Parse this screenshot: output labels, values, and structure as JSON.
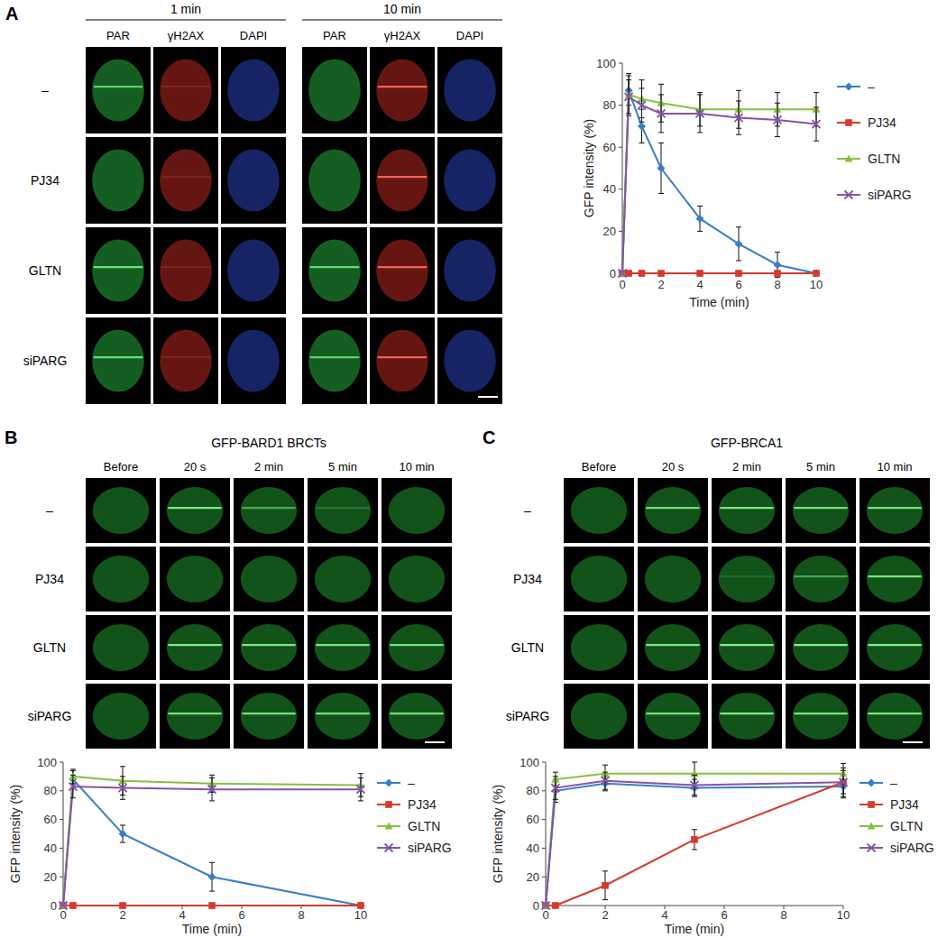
{
  "figure": {
    "panels": [
      {
        "label": "A",
        "times": [
          "1 min",
          "10 min"
        ],
        "channels": [
          "PAR",
          "γH2AX",
          "DAPI"
        ],
        "rows": [
          "–",
          "PJ34",
          "GLTN",
          "siPARG"
        ]
      },
      {
        "label": "B",
        "title": "GFP-BARD1 BRCTs",
        "columns": [
          "Before",
          "20 s",
          "2 min",
          "5 min",
          "10 min"
        ],
        "rows": [
          "–",
          "PJ34",
          "GLTN",
          "siPARG"
        ]
      },
      {
        "label": "C",
        "title": "GFP-BRCA1",
        "columns": [
          "Before",
          "20 s",
          "2 min",
          "5 min",
          "10 min"
        ],
        "rows": [
          "–",
          "PJ34",
          "GLTN",
          "siPARG"
        ]
      }
    ]
  },
  "chart_data": [
    {
      "type": "line",
      "x_label": "Time (min)",
      "y_label": "GFP intensity (%)",
      "x": [
        0,
        0.33,
        1,
        2,
        4,
        6,
        8,
        10
      ],
      "xlim": [
        0,
        10
      ],
      "xticks": [
        0,
        2,
        4,
        6,
        8,
        10
      ],
      "ylim": [
        0,
        100
      ],
      "yticks": [
        0,
        20,
        40,
        60,
        80,
        100
      ],
      "legend": "right",
      "series": [
        {
          "name": "–",
          "color": "#3b7dc4",
          "marker": "diamond",
          "values": [
            0,
            87,
            70,
            50,
            26,
            14,
            4,
            0
          ],
          "errors": [
            null,
            7,
            8,
            12,
            6,
            8,
            6,
            null
          ]
        },
        {
          "name": "PJ34",
          "color": "#d63a2f",
          "marker": "square",
          "values": [
            0,
            0,
            0,
            0,
            0,
            0,
            0,
            0
          ]
        },
        {
          "name": "GLTN",
          "color": "#86c040",
          "marker": "triangle",
          "values": [
            0,
            85,
            83,
            81,
            78,
            78,
            78,
            78
          ],
          "errors": [
            null,
            10,
            9,
            9,
            8,
            9,
            8,
            8
          ]
        },
        {
          "name": "siPARG",
          "color": "#8454a8",
          "marker": "x",
          "values": [
            0,
            84,
            80,
            76,
            76,
            74,
            73,
            71
          ],
          "errors": [
            null,
            8,
            8,
            9,
            9,
            8,
            8,
            8
          ]
        }
      ]
    },
    {
      "type": "line",
      "x_label": "Time (min)",
      "y_label": "GFP intensity (%)",
      "x": [
        0,
        0.33,
        2,
        5,
        10
      ],
      "xlim": [
        0,
        10
      ],
      "xticks": [
        0,
        2,
        4,
        6,
        8,
        10
      ],
      "ylim": [
        0,
        100
      ],
      "yticks": [
        0,
        20,
        40,
        60,
        80,
        100
      ],
      "legend": "right",
      "series": [
        {
          "name": "–",
          "color": "#3b7dc4",
          "marker": "diamond",
          "values": [
            0,
            88,
            50,
            20,
            0
          ],
          "errors": [
            null,
            6,
            6,
            10,
            null
          ]
        },
        {
          "name": "PJ34",
          "color": "#d63a2f",
          "marker": "square",
          "values": [
            0,
            0,
            0,
            0,
            0
          ]
        },
        {
          "name": "GLTN",
          "color": "#86c040",
          "marker": "triangle",
          "values": [
            0,
            90,
            87,
            85,
            84
          ],
          "errors": [
            null,
            5,
            10,
            6,
            8
          ]
        },
        {
          "name": "siPARG",
          "color": "#8454a8",
          "marker": "x",
          "values": [
            0,
            83,
            82,
            81,
            81
          ],
          "errors": [
            null,
            8,
            8,
            8,
            8
          ]
        }
      ]
    },
    {
      "type": "line",
      "x_label": "Time (min)",
      "y_label": "GFP intensity (%)",
      "x": [
        0,
        0.33,
        2,
        5,
        10
      ],
      "xlim": [
        0,
        10
      ],
      "xticks": [
        0,
        2,
        4,
        6,
        8,
        10
      ],
      "ylim": [
        0,
        100
      ],
      "yticks": [
        0,
        20,
        40,
        60,
        80,
        100
      ],
      "legend": "right",
      "series": [
        {
          "name": "–",
          "color": "#3b7dc4",
          "marker": "diamond",
          "values": [
            0,
            80,
            85,
            82,
            83
          ],
          "errors": [
            null,
            8,
            5,
            6,
            8
          ]
        },
        {
          "name": "PJ34",
          "color": "#d63a2f",
          "marker": "square",
          "values": [
            0,
            0,
            14,
            46,
            86
          ],
          "errors": [
            null,
            null,
            10,
            7,
            8
          ]
        },
        {
          "name": "GLTN",
          "color": "#86c040",
          "marker": "triangle",
          "values": [
            0,
            88,
            92,
            92,
            92
          ],
          "errors": [
            null,
            5,
            6,
            8,
            7
          ]
        },
        {
          "name": "siPARG",
          "color": "#8454a8",
          "marker": "x",
          "values": [
            0,
            82,
            87,
            84,
            86
          ],
          "errors": [
            null,
            8,
            6,
            7,
            10
          ]
        }
      ]
    }
  ]
}
